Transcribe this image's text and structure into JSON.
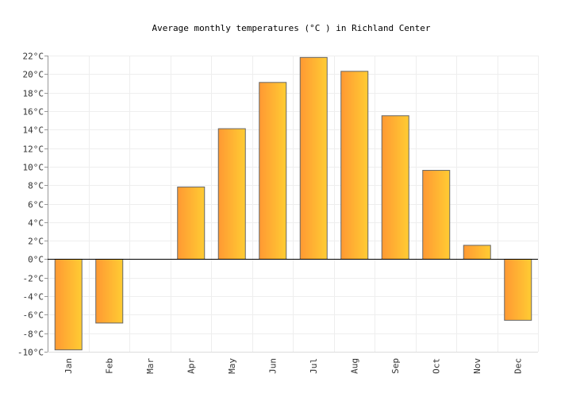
{
  "chart_data": {
    "type": "bar",
    "title": "Average monthly temperatures (°C ) in Richland Center",
    "categories": [
      "Jan",
      "Feb",
      "Mar",
      "Apr",
      "May",
      "Jun",
      "Jul",
      "Aug",
      "Sep",
      "Oct",
      "Nov",
      "Dec"
    ],
    "values": [
      -9.8,
      -6.9,
      0,
      7.8,
      14.1,
      19.1,
      21.8,
      20.3,
      15.5,
      9.6,
      1.5,
      -6.6
    ],
    "unit": "°C",
    "ylim": [
      -10,
      22
    ],
    "yticks": [
      "-10°C",
      "-8°C",
      "-6°C",
      "-4°C",
      "-2°C",
      "0°C",
      "2°C",
      "4°C",
      "6°C",
      "8°C",
      "10°C",
      "12°C",
      "14°C",
      "16°C",
      "18°C",
      "20°C",
      "22°C"
    ],
    "grid": true,
    "bar_gradient": [
      "#ff9933",
      "#ffcc33"
    ],
    "bar_stroke": "#666666"
  }
}
